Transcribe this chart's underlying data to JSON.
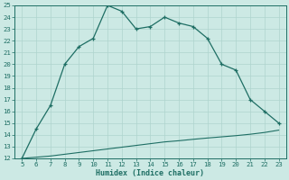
{
  "xlabel": "Humidex (Indice chaleur)",
  "x_main": [
    5,
    6,
    7,
    8,
    9,
    10,
    11,
    12,
    13,
    14,
    15,
    16,
    17,
    18,
    19,
    20,
    21,
    22,
    23
  ],
  "y_main": [
    12,
    14.5,
    16.5,
    20,
    21.5,
    22.2,
    25,
    24.5,
    23.0,
    23.2,
    24.0,
    23.5,
    23.2,
    22.2,
    20.0,
    19.5,
    17.0,
    16.0,
    15.0
  ],
  "x_ref": [
    5,
    6,
    7,
    8,
    9,
    10,
    11,
    12,
    13,
    14,
    15,
    16,
    17,
    18,
    19,
    20,
    21,
    22,
    23
  ],
  "y_ref": [
    12.0,
    12.1,
    12.2,
    12.35,
    12.5,
    12.65,
    12.8,
    12.95,
    13.1,
    13.25,
    13.4,
    13.5,
    13.62,
    13.73,
    13.83,
    13.93,
    14.05,
    14.2,
    14.4
  ],
  "line_color": "#1e6e64",
  "bg_color": "#cce9e4",
  "grid_color": "#aed4ce",
  "ylim": [
    12,
    25
  ],
  "xlim": [
    4.5,
    23.5
  ],
  "yticks": [
    12,
    13,
    14,
    15,
    16,
    17,
    18,
    19,
    20,
    21,
    22,
    23,
    24,
    25
  ],
  "xticks": [
    5,
    6,
    7,
    8,
    9,
    10,
    11,
    12,
    13,
    14,
    15,
    16,
    17,
    18,
    19,
    20,
    21,
    22,
    23
  ],
  "tick_fontsize": 5.2,
  "xlabel_fontsize": 6.0
}
